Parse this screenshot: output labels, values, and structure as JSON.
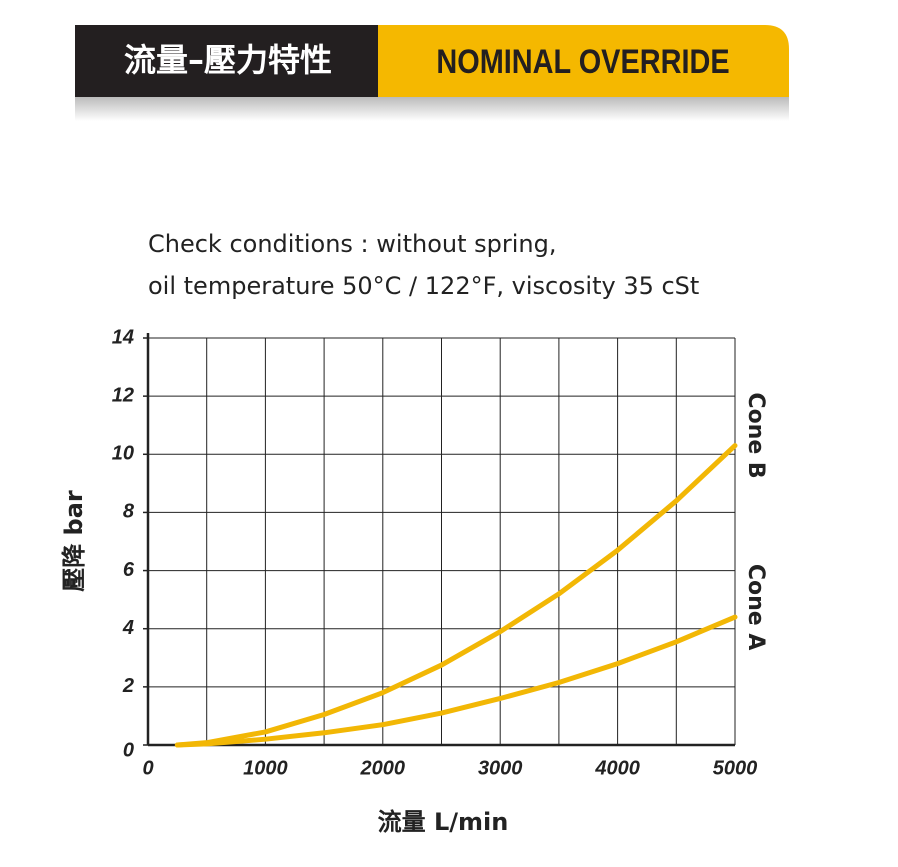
{
  "header": {
    "title": "流量–壓力特性",
    "subtitle": "NOMINAL OVERRIDE"
  },
  "chart_data": {
    "type": "line",
    "subtitle": [
      "Check conditions : without spring,",
      "oil temperature 50°C / 122°F, viscosity 35 cSt"
    ],
    "x_label": "流量 L/min",
    "y_label": "壓降 bar",
    "x": [
      250,
      500,
      1000,
      1500,
      2000,
      2500,
      3000,
      3500,
      4000,
      4500,
      5000
    ],
    "series": [
      {
        "name": "Cone B",
        "color": "#f2b705",
        "values": [
          0,
          0.08,
          0.45,
          1.05,
          1.8,
          2.75,
          3.9,
          5.2,
          6.7,
          8.4,
          10.3
        ]
      },
      {
        "name": "Cone A",
        "color": "#f2b705",
        "values": [
          0,
          0.04,
          0.2,
          0.42,
          0.7,
          1.1,
          1.6,
          2.15,
          2.8,
          3.55,
          4.4
        ]
      }
    ],
    "xlim": [
      0,
      5000
    ],
    "ylim": [
      0,
      14
    ],
    "xticks": [
      0,
      1000,
      2000,
      3000,
      4000,
      5000
    ],
    "yticks": [
      0,
      2,
      4,
      6,
      8,
      10,
      12,
      14
    ],
    "grid": true
  }
}
